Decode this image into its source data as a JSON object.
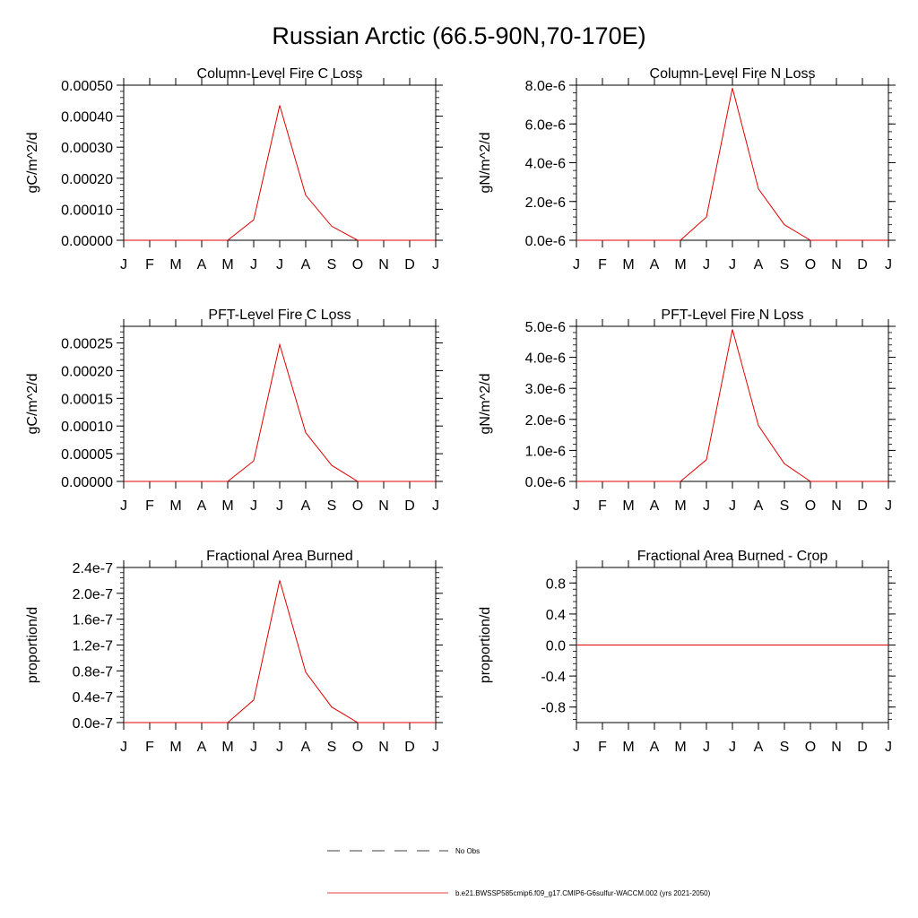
{
  "figure": {
    "title": "Russian Arctic (66.5-90N,70-170E)",
    "months": [
      "J",
      "F",
      "M",
      "A",
      "M",
      "J",
      "J",
      "A",
      "S",
      "O",
      "N",
      "D",
      "J"
    ],
    "colors": {
      "model": "#e00000",
      "axis": "#000000"
    }
  },
  "chart_data": [
    {
      "type": "line",
      "title": "Column-Level Fire C Loss",
      "ylabel": "gC/m^2/d",
      "ylim": [
        0,
        0.0005
      ],
      "yticks": [
        "0.00000",
        "0.00010",
        "0.00020",
        "0.00030",
        "0.00040",
        "0.00050"
      ],
      "values": [
        0,
        0,
        0,
        0,
        0,
        6.6e-05,
        0.000435,
        0.000145,
        4.5e-05,
        0,
        0,
        0,
        0
      ]
    },
    {
      "type": "line",
      "title": "Column-Level Fire N Loss",
      "ylabel": "gN/m^2/d",
      "ylim": [
        0,
        8e-06
      ],
      "yticks": [
        "0.0e-6",
        "2.0e-6",
        "4.0e-6",
        "6.0e-6",
        "8.0e-6"
      ],
      "values": [
        0,
        0,
        0,
        0,
        0,
        1.2e-06,
        7.85e-06,
        2.65e-06,
        8e-07,
        0,
        0,
        0,
        0
      ]
    },
    {
      "type": "line",
      "title": "PFT-Level Fire C Loss",
      "ylabel": "gC/m^2/d",
      "ylim": [
        0,
        0.00028
      ],
      "yticks": [
        "0.00000",
        "0.00005",
        "0.00010",
        "0.00015",
        "0.00020",
        "0.00025"
      ],
      "values": [
        0,
        0,
        0,
        0,
        0,
        3.7e-05,
        0.000247,
        8.8e-05,
        2.9e-05,
        0,
        0,
        0,
        0
      ]
    },
    {
      "type": "line",
      "title": "PFT-Level Fire N Loss",
      "ylabel": "gN/m^2/d",
      "ylim": [
        0,
        5e-06
      ],
      "yticks": [
        "0.0e-6",
        "1.0e-6",
        "2.0e-6",
        "3.0e-6",
        "4.0e-6",
        "5.0e-6"
      ],
      "values": [
        0,
        0,
        0,
        0,
        0,
        7e-07,
        4.9e-06,
        1.8e-06,
        5.7e-07,
        0,
        0,
        0,
        0
      ]
    },
    {
      "type": "line",
      "title": "Fractional Area Burned",
      "ylabel": "proportion/d",
      "ylim": [
        0,
        2.4e-07
      ],
      "yticks": [
        "0.0e-7",
        "0.4e-7",
        "0.8e-7",
        "1.2e-7",
        "1.6e-7",
        "2.0e-7",
        "2.4e-7"
      ],
      "values": [
        0,
        0,
        0,
        0,
        0,
        3.5e-08,
        2.2e-07,
        7.8e-08,
        2.4e-08,
        0,
        0,
        0,
        0
      ]
    },
    {
      "type": "line",
      "title": "Fractional Area Burned - Crop",
      "ylabel": "proportion/d",
      "ylim": [
        -1,
        1
      ],
      "yticks": [
        "-0.8",
        "-0.4",
        "0.0",
        "0.4",
        "0.8"
      ],
      "ytick_values": [
        -0.8,
        -0.4,
        0.0,
        0.4,
        0.8
      ],
      "values": [
        0,
        0,
        0,
        0,
        0,
        0,
        0,
        0,
        0,
        0,
        0,
        0,
        0
      ]
    }
  ],
  "legend": {
    "obs_label": "No Obs",
    "model_label": "b.e21.BWSSP585cmip6.f09_g17.CMIP6-G6sulfur-WACCM.002 (yrs 2021-2050)"
  }
}
